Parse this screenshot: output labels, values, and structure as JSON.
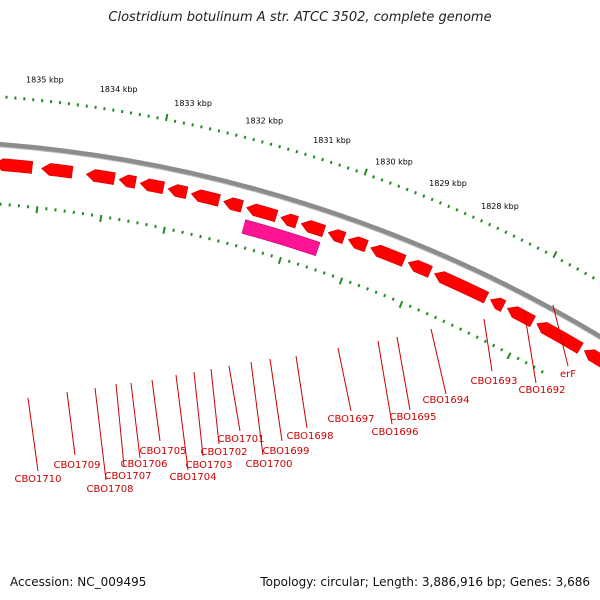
{
  "title": "Clostridium botulinum A str. ATCC 3502, complete genome",
  "footer": {
    "accession": "Accession: NC_009495",
    "summary": "Topology: circular; Length: 3,886,916 bp; Genes: 3,686"
  },
  "colors": {
    "forward_gene": "#ff0000",
    "rna_gene": "#ff1493",
    "backbone": "#8c8c8c",
    "ticks": "#228b22",
    "labels": "#cc0000"
  },
  "kbp_ticks": [
    "1828 kbp",
    "1829 kbp",
    "1830 kbp",
    "1831 kbp",
    "1832 kbp",
    "1833 kbp",
    "1834 kbp",
    "1835 kbp"
  ],
  "gene_labels": [
    "erF",
    "CBO1692",
    "CBO1693",
    "CBO1694",
    "CBO1695",
    "CBO1696",
    "CBO1697",
    "CBO1698",
    "CBO1699",
    "CBO1700",
    "CBO1701",
    "CBO1702",
    "CBO1703",
    "CBO1704",
    "CBO1705",
    "CBO1706",
    "CBO1707",
    "CBO1708",
    "CBO1709",
    "CBO1710"
  ]
}
